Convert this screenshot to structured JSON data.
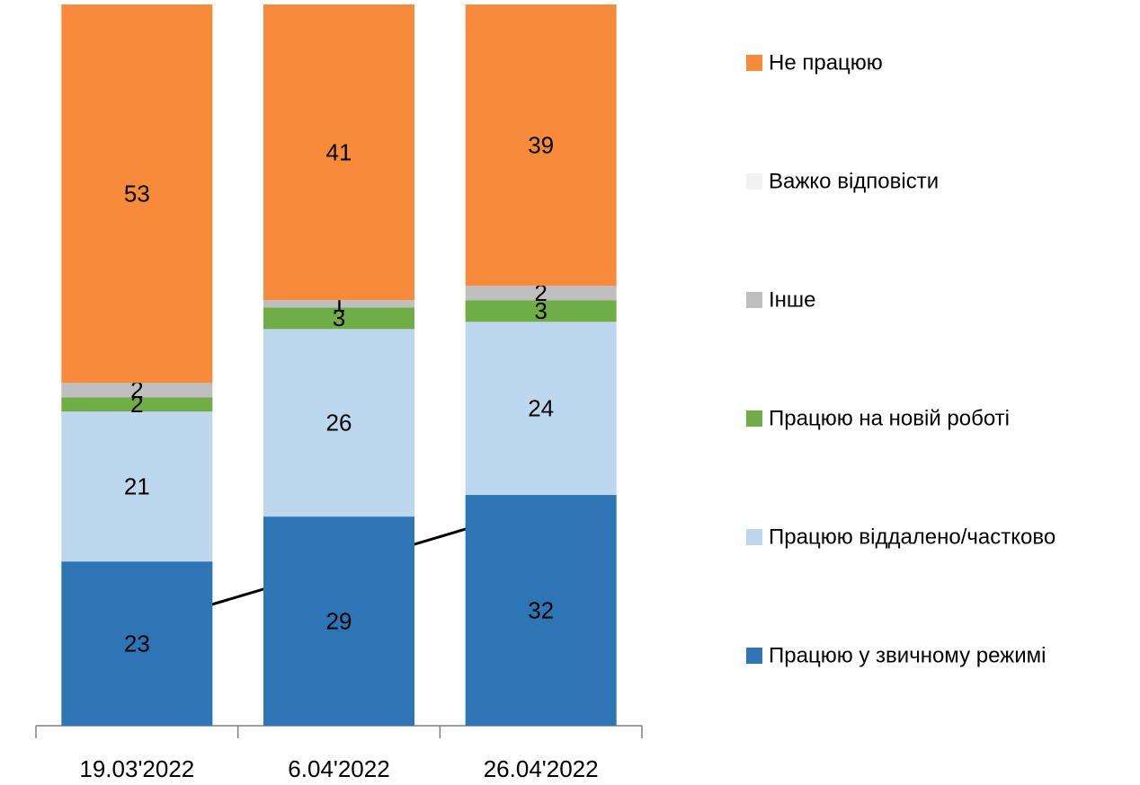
{
  "chart_data": {
    "type": "stacked_bar",
    "categories": [
      "19.03'2022",
      "6.04'2022",
      "26.04'2022"
    ],
    "series": [
      {
        "name": "Працюю у звичному режимі",
        "color": "#2e75b6",
        "values": [
          23,
          29,
          32
        ]
      },
      {
        "name": "Працюю віддалено/частково",
        "color": "#bdd7ee",
        "values": [
          21,
          26,
          24
        ]
      },
      {
        "name": "Працюю на новій роботі",
        "color": "#70ad47",
        "values": [
          2,
          3,
          3
        ]
      },
      {
        "name": "Інше",
        "color": "#bfbfbf",
        "values": [
          2,
          1,
          2
        ]
      },
      {
        "name": "Важко відповісти",
        "color": "#f2f2f2",
        "values": [
          0,
          0,
          0
        ]
      },
      {
        "name": "Не працюю",
        "color": "#f78a3b",
        "values": [
          53,
          41,
          39
        ]
      }
    ],
    "legend": "right"
  }
}
